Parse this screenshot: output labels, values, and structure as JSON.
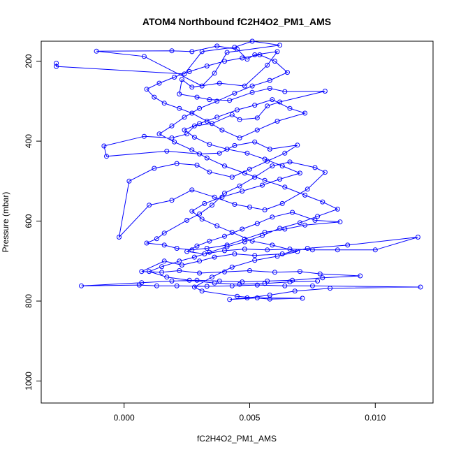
{
  "chart_data": {
    "type": "scatter",
    "title": "ATOM4 Northbound fC2H4O2_PM1_AMS",
    "xlabel": "fC2H4O2_PM1_AMS",
    "ylabel": "Pressure (mbar)",
    "xlim": [
      -0.0033,
      0.0123
    ],
    "ylim": [
      1055,
      150
    ],
    "y_reversed": true,
    "grid": false,
    "marker": "open-circle",
    "connected": true,
    "series_color": "#0000ff",
    "x_ticks": [
      {
        "value": 0.0,
        "label": "0.000"
      },
      {
        "value": 0.005,
        "label": "0.005"
      },
      {
        "value": 0.01,
        "label": "0.010"
      }
    ],
    "y_ticks": [
      {
        "value": 200,
        "label": "200"
      },
      {
        "value": 400,
        "label": "400"
      },
      {
        "value": 600,
        "label": "600"
      },
      {
        "value": 800,
        "label": "800"
      },
      {
        "value": 1000,
        "label": "1000"
      }
    ],
    "points": [
      [
        -0.0027,
        205
      ],
      [
        -0.0027,
        213
      ],
      [
        0.0024,
        232
      ],
      [
        0.0031,
        176
      ],
      [
        0.0044,
        165
      ],
      [
        0.0051,
        150
      ],
      [
        0.0062,
        160
      ],
      [
        0.0041,
        178
      ],
      [
        0.0036,
        230
      ],
      [
        0.0031,
        262
      ],
      [
        0.0008,
        188
      ],
      [
        -0.0011,
        175
      ],
      [
        0.0019,
        174
      ],
      [
        0.0027,
        176
      ],
      [
        0.0037,
        162
      ],
      [
        0.0045,
        170
      ],
      [
        0.0049,
        195
      ],
      [
        0.0052,
        184
      ],
      [
        0.0061,
        176
      ],
      [
        0.0057,
        210
      ],
      [
        0.0048,
        262
      ],
      [
        0.0038,
        255
      ],
      [
        0.0027,
        265
      ],
      [
        0.0023,
        246
      ],
      [
        0.0022,
        282
      ],
      [
        0.0029,
        290
      ],
      [
        0.0034,
        296
      ],
      [
        0.0042,
        298
      ],
      [
        0.0051,
        278
      ],
      [
        0.0058,
        268
      ],
      [
        0.0064,
        276
      ],
      [
        0.008,
        275
      ],
      [
        0.0062,
        302
      ],
      [
        0.0057,
        312
      ],
      [
        0.0053,
        342
      ],
      [
        0.0046,
        346
      ],
      [
        0.0043,
        334
      ],
      [
        0.0035,
        356
      ],
      [
        0.0028,
        362
      ],
      [
        0.0025,
        382
      ],
      [
        0.0019,
        392
      ],
      [
        0.0008,
        388
      ],
      [
        -0.0008,
        412
      ],
      [
        -0.0007,
        438
      ],
      [
        0.0017,
        425
      ],
      [
        0.003,
        432
      ],
      [
        0.0038,
        430
      ],
      [
        0.0044,
        411
      ],
      [
        0.0052,
        402
      ],
      [
        0.0058,
        420
      ],
      [
        0.0069,
        410
      ],
      [
        0.0064,
        430
      ],
      [
        0.0057,
        450
      ],
      [
        0.005,
        470
      ],
      [
        0.0043,
        490
      ],
      [
        0.0034,
        477
      ],
      [
        0.0029,
        460
      ],
      [
        0.0021,
        456
      ],
      [
        0.0012,
        468
      ],
      [
        0.0002,
        500
      ],
      [
        -0.0002,
        640
      ],
      [
        0.001,
        560
      ],
      [
        0.0019,
        548
      ],
      [
        0.0027,
        522
      ],
      [
        0.0036,
        540
      ],
      [
        0.0044,
        558
      ],
      [
        0.005,
        565
      ],
      [
        0.0056,
        572
      ],
      [
        0.0063,
        556
      ],
      [
        0.0073,
        520
      ],
      [
        0.008,
        478
      ],
      [
        0.0076,
        466
      ],
      [
        0.0066,
        452
      ],
      [
        0.0059,
        462
      ],
      [
        0.0052,
        490
      ],
      [
        0.0046,
        512
      ],
      [
        0.004,
        530
      ],
      [
        0.0035,
        560
      ],
      [
        0.003,
        582
      ],
      [
        0.0025,
        598
      ],
      [
        0.0016,
        630
      ],
      [
        0.0013,
        644
      ],
      [
        0.0009,
        655
      ],
      [
        0.0016,
        660
      ],
      [
        0.0021,
        668
      ],
      [
        0.0027,
        672
      ],
      [
        0.0033,
        668
      ],
      [
        0.0041,
        660
      ],
      [
        0.0048,
        645
      ],
      [
        0.0056,
        628
      ],
      [
        0.0064,
        620
      ],
      [
        0.0072,
        610
      ],
      [
        0.0086,
        602
      ],
      [
        0.0076,
        598
      ],
      [
        0.0067,
        578
      ],
      [
        0.0059,
        590
      ],
      [
        0.0053,
        606
      ],
      [
        0.0047,
        620
      ],
      [
        0.004,
        638
      ],
      [
        0.0034,
        650
      ],
      [
        0.0029,
        662
      ],
      [
        0.0025,
        676
      ],
      [
        0.0032,
        682
      ],
      [
        0.004,
        674
      ],
      [
        0.0048,
        670
      ],
      [
        0.0057,
        672
      ],
      [
        0.0066,
        670
      ],
      [
        0.0075,
        672
      ],
      [
        0.0085,
        672
      ],
      [
        0.01,
        672
      ],
      [
        0.0117,
        640
      ],
      [
        0.0089,
        660
      ],
      [
        0.0073,
        668
      ],
      [
        0.0063,
        682
      ],
      [
        0.0052,
        686
      ],
      [
        0.0044,
        682
      ],
      [
        0.0036,
        690
      ],
      [
        0.003,
        700
      ],
      [
        0.0023,
        710
      ],
      [
        0.0016,
        700
      ],
      [
        0.0007,
        726
      ],
      [
        0.0015,
        728
      ],
      [
        0.0022,
        724
      ],
      [
        0.003,
        730
      ],
      [
        0.004,
        727
      ],
      [
        0.005,
        724
      ],
      [
        0.006,
        728
      ],
      [
        0.007,
        726
      ],
      [
        0.0078,
        732
      ],
      [
        0.0094,
        737
      ],
      [
        0.0079,
        742
      ],
      [
        0.0067,
        748
      ],
      [
        0.0057,
        750
      ],
      [
        0.0047,
        752
      ],
      [
        0.0038,
        750
      ],
      [
        0.0029,
        748
      ],
      [
        0.0019,
        750
      ],
      [
        0.0007,
        754
      ],
      [
        -0.0017,
        762
      ],
      [
        0.0006,
        760
      ],
      [
        0.0013,
        762
      ],
      [
        0.0021,
        762
      ],
      [
        0.0033,
        763
      ],
      [
        0.0043,
        762
      ],
      [
        0.0053,
        760
      ],
      [
        0.0064,
        762
      ],
      [
        0.0075,
        762
      ],
      [
        0.0118,
        765
      ],
      [
        0.0082,
        768
      ],
      [
        0.0068,
        775
      ],
      [
        0.0058,
        785
      ],
      [
        0.0049,
        792
      ],
      [
        0.0042,
        796
      ],
      [
        0.0053,
        792
      ],
      [
        0.0071,
        793
      ],
      [
        0.0058,
        795
      ],
      [
        0.0045,
        788
      ],
      [
        0.0031,
        775
      ],
      [
        0.0028,
        765
      ],
      [
        0.0035,
        740
      ],
      [
        0.0043,
        715
      ],
      [
        0.0052,
        698
      ],
      [
        0.0061,
        688
      ],
      [
        0.0069,
        676
      ],
      [
        0.0059,
        660
      ],
      [
        0.0051,
        650
      ],
      [
        0.0043,
        628
      ],
      [
        0.0037,
        612
      ],
      [
        0.0031,
        595
      ],
      [
        0.0027,
        575
      ],
      [
        0.0032,
        556
      ],
      [
        0.0039,
        540
      ],
      [
        0.0047,
        525
      ],
      [
        0.0055,
        510
      ],
      [
        0.0062,
        495
      ],
      [
        0.007,
        480
      ],
      [
        0.0063,
        462
      ],
      [
        0.0056,
        445
      ],
      [
        0.0049,
        430
      ],
      [
        0.0041,
        420
      ],
      [
        0.0034,
        408
      ],
      [
        0.0028,
        390
      ],
      [
        0.0024,
        372
      ],
      [
        0.003,
        356
      ],
      [
        0.0037,
        340
      ],
      [
        0.0045,
        322
      ],
      [
        0.0052,
        310
      ],
      [
        0.0059,
        296
      ],
      [
        0.0066,
        318
      ],
      [
        0.0072,
        330
      ],
      [
        0.0061,
        350
      ],
      [
        0.0053,
        372
      ],
      [
        0.0046,
        392
      ],
      [
        0.0039,
        372
      ],
      [
        0.0033,
        350
      ],
      [
        0.0027,
        330
      ],
      [
        0.0022,
        318
      ],
      [
        0.0016,
        305
      ],
      [
        0.0012,
        290
      ],
      [
        0.0009,
        270
      ],
      [
        0.0014,
        255
      ],
      [
        0.002,
        240
      ],
      [
        0.0026,
        226
      ],
      [
        0.0033,
        212
      ],
      [
        0.004,
        200
      ],
      [
        0.0047,
        192
      ],
      [
        0.0054,
        184
      ],
      [
        0.006,
        200
      ],
      [
        0.0065,
        228
      ],
      [
        0.0058,
        248
      ],
      [
        0.0051,
        262
      ],
      [
        0.0044,
        280
      ],
      [
        0.0037,
        300
      ],
      [
        0.003,
        318
      ],
      [
        0.0024,
        340
      ],
      [
        0.0019,
        362
      ],
      [
        0.0014,
        382
      ],
      [
        0.002,
        402
      ],
      [
        0.0027,
        422
      ],
      [
        0.0033,
        442
      ],
      [
        0.004,
        462
      ],
      [
        0.0048,
        480
      ],
      [
        0.0056,
        498
      ],
      [
        0.0064,
        515
      ],
      [
        0.0072,
        535
      ],
      [
        0.0079,
        552
      ],
      [
        0.0085,
        570
      ],
      [
        0.0077,
        588
      ],
      [
        0.007,
        604
      ],
      [
        0.0062,
        618
      ],
      [
        0.0055,
        636
      ],
      [
        0.0048,
        652
      ],
      [
        0.0041,
        664
      ],
      [
        0.0034,
        678
      ],
      [
        0.0028,
        690
      ],
      [
        0.0022,
        700
      ],
      [
        0.0015,
        714
      ],
      [
        0.001,
        726
      ],
      [
        0.0017,
        740
      ],
      [
        0.0026,
        748
      ],
      [
        0.0036,
        755
      ],
      [
        0.0046,
        758
      ],
      [
        0.0056,
        756
      ],
      [
        0.0066,
        752
      ],
      [
        0.0077,
        750
      ]
    ]
  }
}
